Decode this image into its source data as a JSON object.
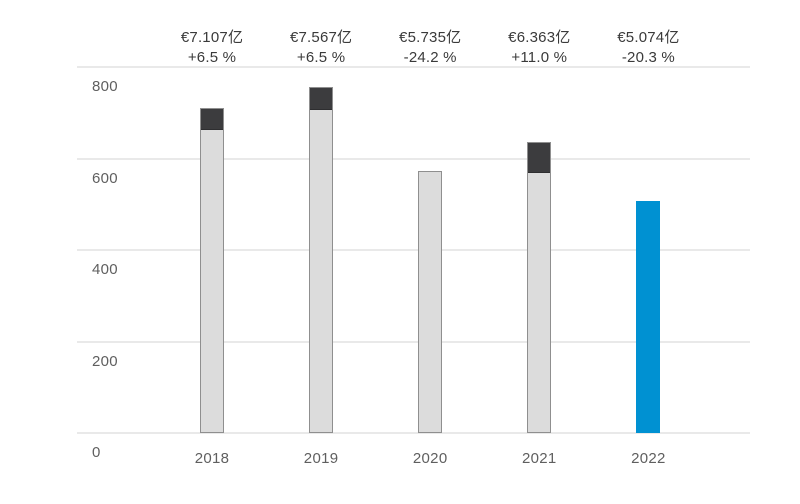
{
  "chart_data": {
    "type": "bar",
    "title": "",
    "xlabel": "",
    "ylabel": "",
    "categories": [
      "2018",
      "2019",
      "2020",
      "2021",
      "2022"
    ],
    "values": [
      710.7,
      756.7,
      573.5,
      636.3,
      507.4
    ],
    "change_pct": [
      6.5,
      6.5,
      -24.2,
      11.0,
      -20.3
    ],
    "annotations": [
      {
        "value_label": "€7.107亿",
        "change_label": "+6.5 %"
      },
      {
        "value_label": "€7.567亿",
        "change_label": "+6.5 %"
      },
      {
        "value_label": "€5.735亿",
        "change_label": "-24.2 %"
      },
      {
        "value_label": "€6.363亿",
        "change_label": "+11.0 %"
      },
      {
        "value_label": "€5.074亿",
        "change_label": "-20.3 %"
      }
    ],
    "y_ticks": [
      800,
      600,
      400,
      200,
      0
    ],
    "ylim": [
      0,
      800
    ],
    "grid": true,
    "legend": "none",
    "highlight_index": 4,
    "cap_note": "dark segment atop bars with positive growth marks the year-over-year increase",
    "colors": {
      "bar_fill": "#dcdcdc",
      "bar_border": "#8f8f8f",
      "cap_fill": "#3c3c3e",
      "highlight_fill": "#0091d2",
      "gridline": "#e9e9e9",
      "annotation_text": "#3a3a3a",
      "axis_text": "#5f5f5f",
      "background": "#ffffff"
    }
  }
}
